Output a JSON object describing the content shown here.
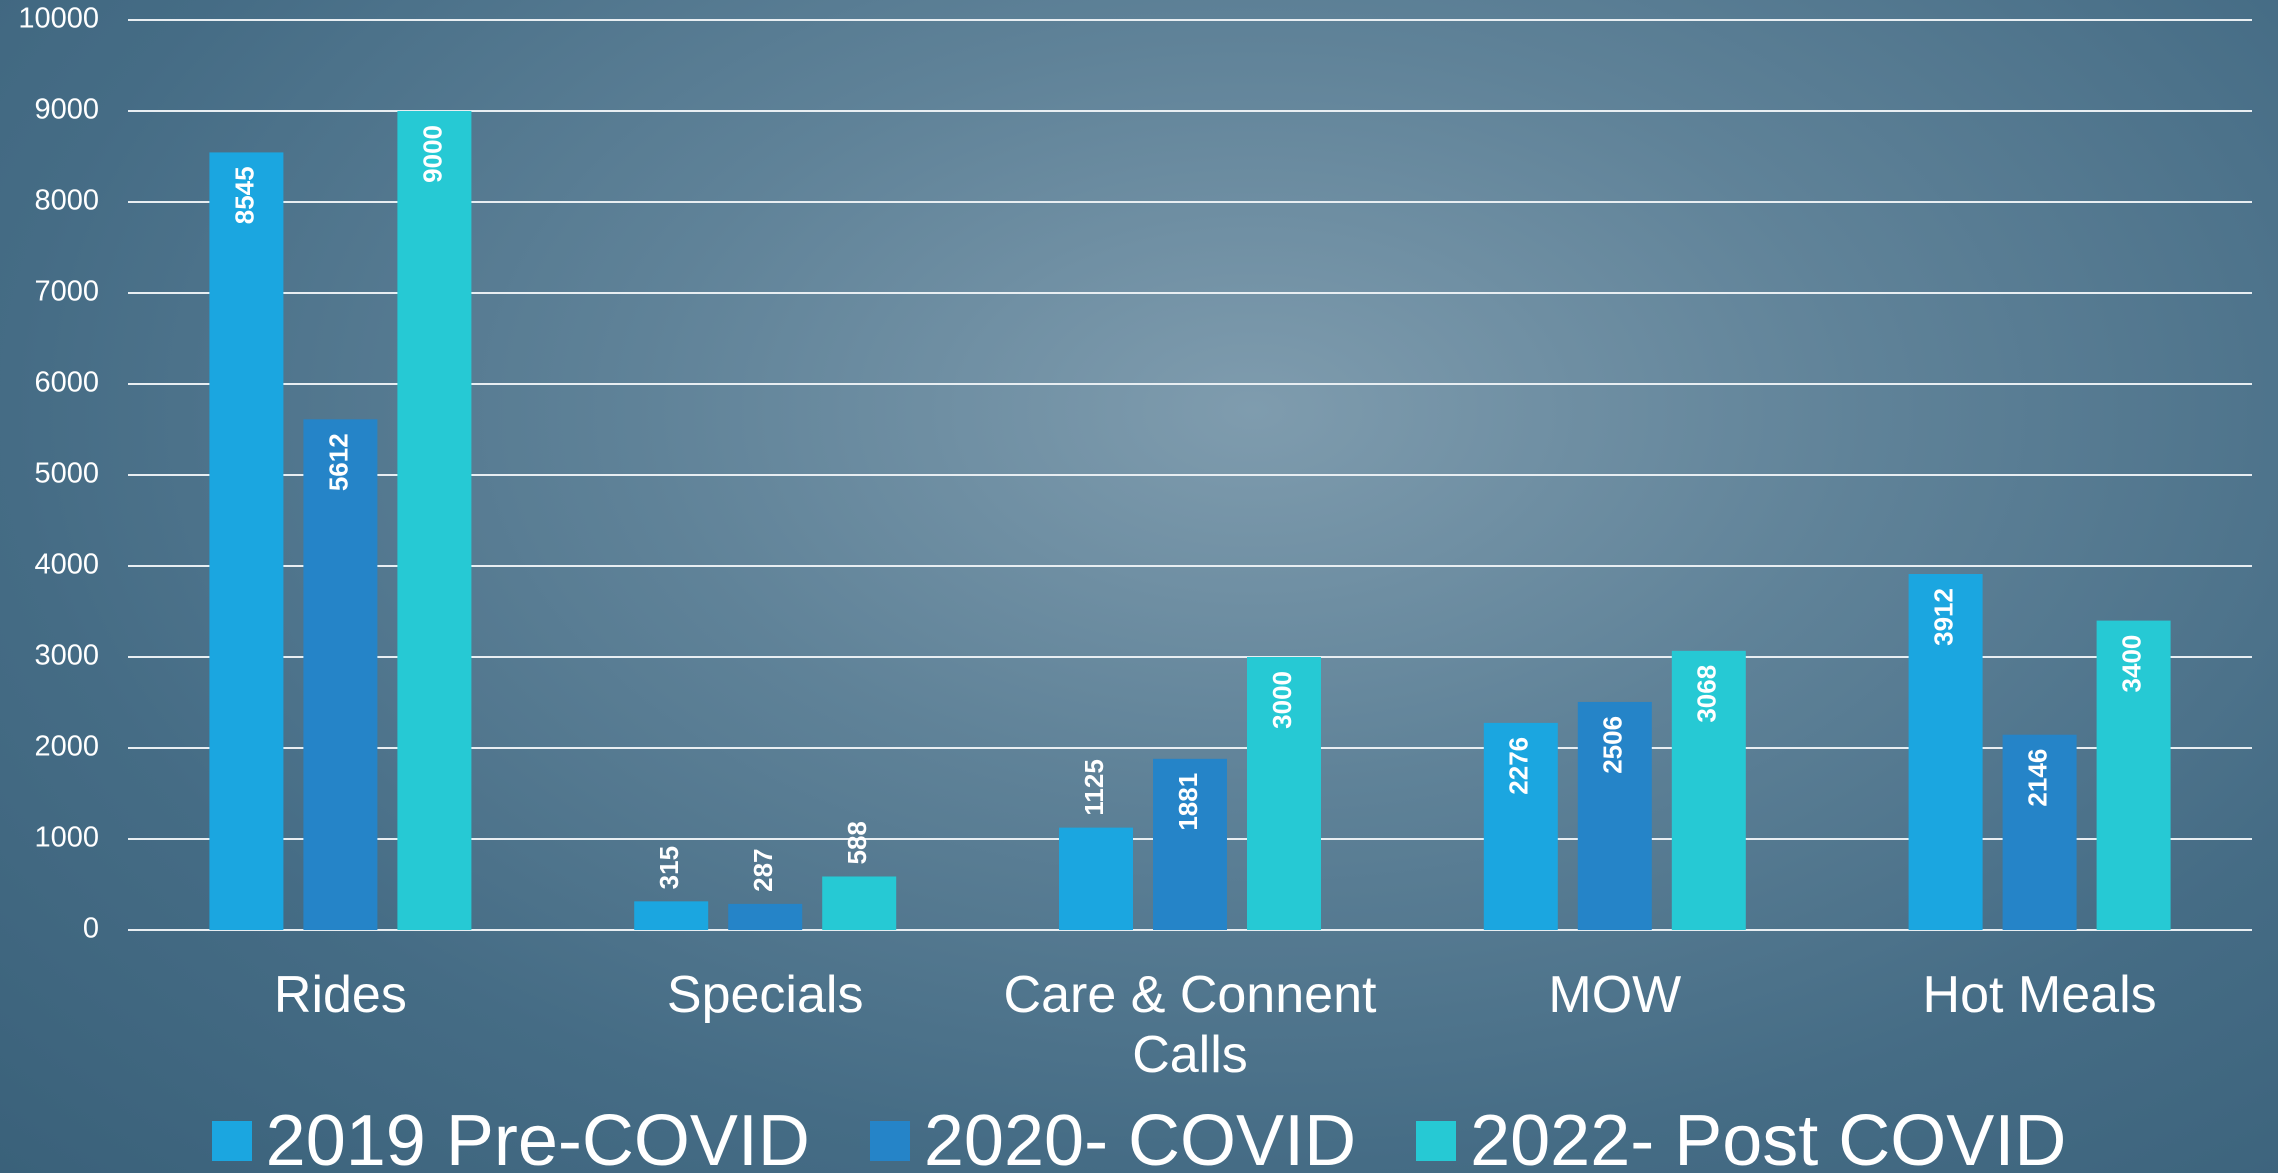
{
  "chart_data": {
    "type": "bar",
    "categories": [
      "Rides",
      "Specials",
      "Care & Connent Calls",
      "MOW",
      "Hot Meals"
    ],
    "series": [
      {
        "name": "2019 Pre-COVID",
        "color": "#1ba6e0",
        "values": [
          8545,
          315,
          1125,
          2276,
          3912
        ]
      },
      {
        "name": "2020- COVID",
        "color": "#2584c8",
        "values": [
          5612,
          287,
          1881,
          2506,
          2146
        ]
      },
      {
        "name": "2022- Post COVID",
        "color": "#26c9d4",
        "values": [
          9000,
          588,
          3000,
          3068,
          3400
        ]
      }
    ],
    "ylim": [
      0,
      10000
    ],
    "yticks": [
      0,
      1000,
      2000,
      3000,
      4000,
      5000,
      6000,
      7000,
      8000,
      9000,
      10000
    ],
    "grid": true,
    "legend": "bottom"
  }
}
